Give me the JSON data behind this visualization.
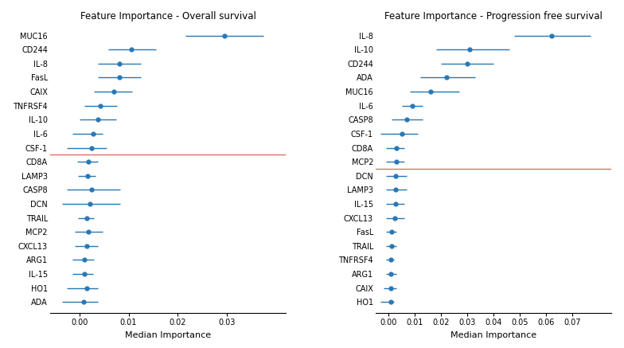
{
  "os_labels": [
    "MUC16",
    "CD244",
    "IL-8",
    "FasL",
    "CAIX",
    "TNFRSF4",
    "IL-10",
    "IL-6",
    "CSF-1",
    "CD8A",
    "LAMP3",
    "CASP8",
    "DCN",
    "TRAIL",
    "MCP2",
    "CXCL13",
    "ARG1",
    "IL-15",
    "HO1",
    "ADA"
  ],
  "os_median": [
    0.0295,
    0.0105,
    0.0082,
    0.0082,
    0.007,
    0.0043,
    0.0038,
    0.0028,
    0.0025,
    0.0018,
    0.0016,
    0.0025,
    0.0022,
    0.0015,
    0.0018,
    0.0015,
    0.001,
    0.001,
    0.0015,
    0.0008
  ],
  "os_low": [
    0.0215,
    0.0058,
    0.0038,
    0.0038,
    0.003,
    0.001,
    0.0,
    -0.0015,
    -0.0025,
    -0.0004,
    -0.0003,
    -0.0025,
    -0.0035,
    -0.0003,
    -0.001,
    -0.001,
    -0.0015,
    -0.0015,
    -0.0025,
    -0.0035
  ],
  "os_high": [
    0.0375,
    0.0155,
    0.0125,
    0.0125,
    0.0108,
    0.0077,
    0.0075,
    0.0048,
    0.0055,
    0.0038,
    0.0033,
    0.0083,
    0.0083,
    0.003,
    0.0048,
    0.0038,
    0.003,
    0.0028,
    0.0038,
    0.0038
  ],
  "os_red_line_after": 9,
  "os_xlim": [
    -0.006,
    0.042
  ],
  "os_xticks": [
    0.0,
    0.01,
    0.02,
    0.03
  ],
  "os_title": "Feature Importance - Overall survival",
  "os_xlabel": "Median Importance",
  "pfs_labels": [
    "IL-8",
    "IL-10",
    "CD244",
    "ADA",
    "MUC16",
    "IL-6",
    "CASP8",
    "CSF-1",
    "CD8A",
    "MCP2",
    "DCN",
    "LAMP3",
    "IL-15",
    "CXCL13",
    "FasL",
    "TRAIL",
    "TNFRSF4",
    "ARG1",
    "CAIX",
    "HO1"
  ],
  "pfs_median": [
    0.062,
    0.031,
    0.03,
    0.022,
    0.016,
    0.009,
    0.007,
    0.005,
    0.003,
    0.003,
    0.0025,
    0.0025,
    0.0025,
    0.0022,
    0.001,
    0.001,
    0.0009,
    0.0009,
    0.0009,
    0.0007
  ],
  "pfs_low": [
    0.048,
    0.018,
    0.02,
    0.012,
    0.008,
    0.005,
    0.001,
    -0.003,
    -0.001,
    -0.001,
    -0.001,
    -0.001,
    -0.001,
    -0.001,
    -0.001,
    -0.001,
    -0.001,
    -0.001,
    -0.002,
    -0.003
  ],
  "pfs_high": [
    0.077,
    0.046,
    0.04,
    0.033,
    0.027,
    0.013,
    0.013,
    0.011,
    0.006,
    0.006,
    0.007,
    0.007,
    0.006,
    0.006,
    0.003,
    0.003,
    0.002,
    0.003,
    0.003,
    0.002
  ],
  "pfs_red_line_after": 10,
  "pfs_xlim": [
    -0.005,
    0.085
  ],
  "pfs_xticks": [
    0.0,
    0.01,
    0.02,
    0.03,
    0.04,
    0.05,
    0.06,
    0.07
  ],
  "pfs_title": "Feature Importance - Progression free survival",
  "pfs_xlabel": "Median Importance",
  "dot_color": "#2878B5",
  "line_color": "#2878B5",
  "red_line_color": "#E07060",
  "bg_color": "white",
  "title_fontsize": 8.5,
  "label_fontsize": 7.0,
  "tick_fontsize": 7.0,
  "xlabel_fontsize": 8.0
}
